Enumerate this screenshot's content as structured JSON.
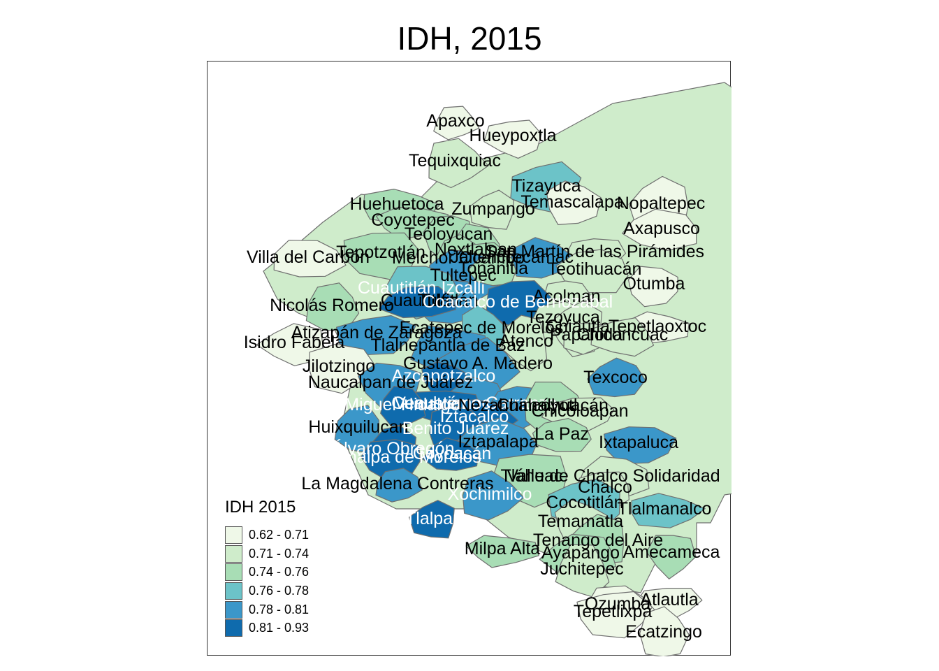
{
  "title": "IDH, 2015",
  "legend": {
    "title": "IDH 2015",
    "classes": [
      {
        "label": "0.62 - 0.71",
        "color": "#eff8e8"
      },
      {
        "label": "0.71 - 0.74",
        "color": "#cfeccb"
      },
      {
        "label": "0.74 - 0.76",
        "color": "#a8ddb5"
      },
      {
        "label": "0.76 - 0.78",
        "color": "#6cc3c8"
      },
      {
        "label": "0.78 - 0.81",
        "color": "#3b97c9"
      },
      {
        "label": "0.81 - 0.93",
        "color": "#0f6bad"
      }
    ]
  },
  "municipalities": [
    {
      "name": "Apaxco",
      "cls": 0,
      "light": false
    },
    {
      "name": "Hueypoxtla",
      "cls": 0,
      "light": false
    },
    {
      "name": "Tequixquiac",
      "cls": 1,
      "light": false
    },
    {
      "name": "Tizayuca",
      "cls": 3,
      "light": false
    },
    {
      "name": "Huehuetoca",
      "cls": 2,
      "light": false
    },
    {
      "name": "Zumpango",
      "cls": 1,
      "light": false
    },
    {
      "name": "Temascalapa",
      "cls": 0,
      "light": false
    },
    {
      "name": "Nopaltepec",
      "cls": 0,
      "light": false
    },
    {
      "name": "Coyotepec",
      "cls": 2,
      "light": false
    },
    {
      "name": "Axapusco",
      "cls": 0,
      "light": false
    },
    {
      "name": "Teoloyucan",
      "cls": 2,
      "light": false
    },
    {
      "name": "Nextlalpan",
      "cls": 2,
      "light": false
    },
    {
      "name": "San Martín de las Pirámides",
      "cls": 1,
      "light": false
    },
    {
      "name": "Villa del Carbón",
      "cls": 0,
      "light": false
    },
    {
      "name": "Tepotzotlán",
      "cls": 2,
      "light": false
    },
    {
      "name": "Melchor Ocampo",
      "cls": 2,
      "light": false
    },
    {
      "name": "Jaltenco",
      "cls": 2,
      "light": false
    },
    {
      "name": "Tecámac",
      "cls": 4,
      "light": false
    },
    {
      "name": "Teotihuacán",
      "cls": 1,
      "light": false
    },
    {
      "name": "Tultepec",
      "cls": 4,
      "light": false
    },
    {
      "name": "Tonanitla",
      "cls": 2,
      "light": false
    },
    {
      "name": "Otumba",
      "cls": 0,
      "light": false
    },
    {
      "name": "Tultitlán",
      "cls": 4,
      "light": false
    },
    {
      "name": "Cuautitlán Izcalli",
      "cls": 3,
      "light": true
    },
    {
      "name": "Cuautitlán",
      "cls": 5,
      "light": false
    },
    {
      "name": "Acolman",
      "cls": 1,
      "light": false
    },
    {
      "name": "Nicolás Romero",
      "cls": 2,
      "light": false
    },
    {
      "name": "Coacalco de Berriozábal",
      "cls": 5,
      "light": true
    },
    {
      "name": "Tezoyuca",
      "cls": 1,
      "light": false
    },
    {
      "name": "Atizapán de Zaragoza",
      "cls": 4,
      "light": false
    },
    {
      "name": "Ecatepec de Morelos",
      "cls": 3,
      "light": false
    },
    {
      "name": "Chiautla",
      "cls": 1,
      "light": false
    },
    {
      "name": "Tepetlaoxtoc",
      "cls": 0,
      "light": false
    },
    {
      "name": "Isidro Fabela",
      "cls": 0,
      "light": false
    },
    {
      "name": "Tlalnepantla de Baz",
      "cls": 4,
      "light": false
    },
    {
      "name": "Atenco",
      "cls": 1,
      "light": false
    },
    {
      "name": "Papalotla",
      "cls": 1,
      "light": false
    },
    {
      "name": "Chiconcuac",
      "cls": 1,
      "light": false
    },
    {
      "name": "Jilotzingo",
      "cls": 0,
      "light": false
    },
    {
      "name": "Gustavo A. Madero",
      "cls": 4,
      "light": false
    },
    {
      "name": "Azcapotzalco",
      "cls": 5,
      "light": true
    },
    {
      "name": "Texcoco",
      "cls": 4,
      "light": false
    },
    {
      "name": "Naucalpan de Juárez",
      "cls": 4,
      "light": false
    },
    {
      "name": "Venustiano Carranza",
      "cls": 4,
      "light": true
    },
    {
      "name": "Cuauhtémoc",
      "cls": 5,
      "light": true
    },
    {
      "name": "Miguel Hidalgo",
      "cls": 5,
      "light": true
    },
    {
      "name": "Nezahualcóyotl",
      "cls": 4,
      "light": false
    },
    {
      "name": "Chimalhuacán",
      "cls": 2,
      "light": false
    },
    {
      "name": "Chicoloapan",
      "cls": 1,
      "light": false
    },
    {
      "name": "Iztacalco",
      "cls": 5,
      "light": true
    },
    {
      "name": "Huixquilucan",
      "cls": 4,
      "light": false
    },
    {
      "name": "Benito Juárez",
      "cls": 5,
      "light": true
    },
    {
      "name": "La Paz",
      "cls": 2,
      "light": false
    },
    {
      "name": "Ixtapaluca",
      "cls": 4,
      "light": false
    },
    {
      "name": "Iztapalapa",
      "cls": 4,
      "light": false
    },
    {
      "name": "Álvaro Obregón",
      "cls": 5,
      "light": true
    },
    {
      "name": "Coyoacán",
      "cls": 5,
      "light": true
    },
    {
      "name": "Cuajimalpa de Morelos",
      "cls": 5,
      "light": true
    },
    {
      "name": "Valle de Chalco Solidaridad",
      "cls": 1,
      "light": false
    },
    {
      "name": "Tláhuac",
      "cls": 2,
      "light": false
    },
    {
      "name": "La Magdalena Contreras",
      "cls": 4,
      "light": false
    },
    {
      "name": "Chalco",
      "cls": 1,
      "light": false
    },
    {
      "name": "Xochimilco",
      "cls": 4,
      "light": true
    },
    {
      "name": "Cocotitlán",
      "cls": 3,
      "light": false
    },
    {
      "name": "Tlalmanalco",
      "cls": 3,
      "light": false
    },
    {
      "name": "Tlalpan",
      "cls": 5,
      "light": true
    },
    {
      "name": "Temamatla",
      "cls": 1,
      "light": false
    },
    {
      "name": "Tenango del Aire",
      "cls": 2,
      "light": false
    },
    {
      "name": "Milpa Alta",
      "cls": 2,
      "light": false
    },
    {
      "name": "Ayapango",
      "cls": 2,
      "light": false
    },
    {
      "name": "Amecameca",
      "cls": 2,
      "light": false
    },
    {
      "name": "Juchitepec",
      "cls": 1,
      "light": false
    },
    {
      "name": "Atlautla",
      "cls": 0,
      "light": false
    },
    {
      "name": "Ozumba",
      "cls": 0,
      "light": false
    },
    {
      "name": "Tepetlixpa",
      "cls": 0,
      "light": false
    },
    {
      "name": "Ecatzingo",
      "cls": 0,
      "light": false
    }
  ]
}
